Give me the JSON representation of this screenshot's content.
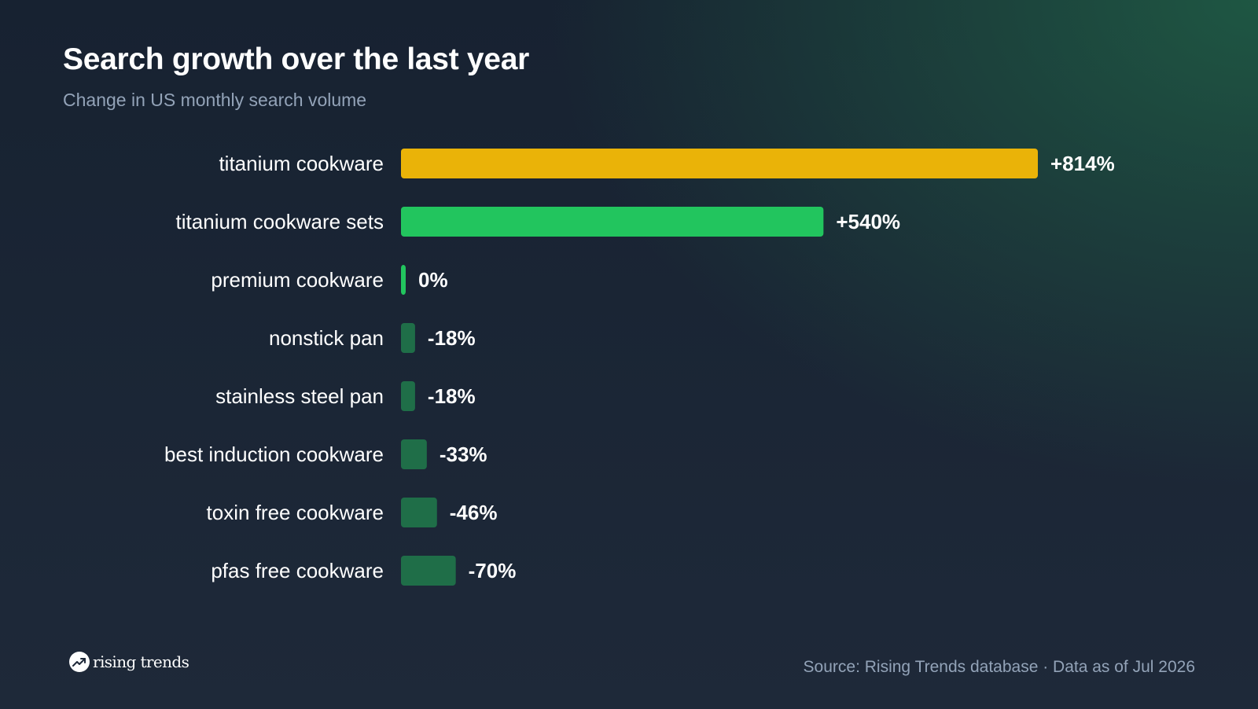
{
  "header": {
    "title": "Search growth over the last year",
    "subtitle": "Change in US monthly search volume"
  },
  "colors": {
    "top_bar": "#eab308",
    "positive_bar": "#22c55e",
    "negative_bar": "#1f6e48"
  },
  "chart_data": {
    "type": "bar",
    "orientation": "horizontal",
    "title": "Search growth over the last year",
    "subtitle": "Change in US monthly search volume",
    "categories": [
      "titanium cookware",
      "titanium cookware sets",
      "premium cookware",
      "nonstick pan",
      "stainless steel pan",
      "best induction cookware",
      "toxin free cookware",
      "pfas free cookware"
    ],
    "values": [
      814,
      540,
      0,
      -18,
      -18,
      -33,
      -46,
      -70
    ],
    "value_labels": [
      "+814%",
      "+540%",
      "0%",
      "-18%",
      "-18%",
      "-33%",
      "-46%",
      "-70%"
    ],
    "unit": "%",
    "grid": false,
    "legend": "none"
  },
  "footer": {
    "brand_name": "rising trends",
    "brand_icon": "trending-up-icon",
    "source": "Source: Rising Trends database · Data as of Jul 2026"
  }
}
